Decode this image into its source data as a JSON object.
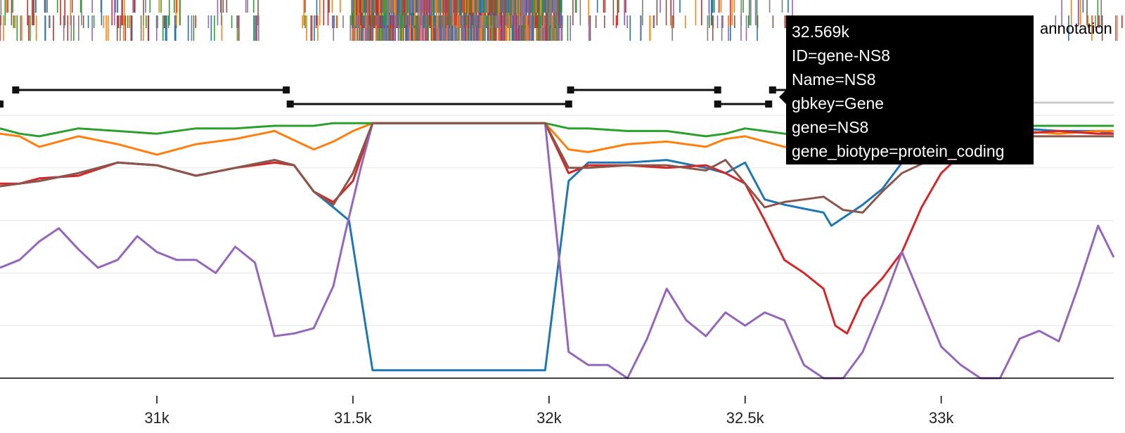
{
  "track_label": "annotation",
  "tooltip": {
    "lines": [
      "32.569k",
      "ID=gene-NS8",
      "Name=NS8",
      "gbkey=Gene",
      "gene=NS8",
      "gene_biotype=protein_coding"
    ]
  },
  "colors": {
    "blue": "#1f77b4",
    "orange": "#ff7f0e",
    "green": "#2ca02c",
    "red": "#d62728",
    "purple": "#9467bd",
    "brown": "#8c564b",
    "gray": "#7f7f7f",
    "gridline": "#e6e6e6"
  },
  "chart_data": {
    "type": "line",
    "xlabel": "",
    "ylabel": "",
    "x_ticks": [
      31000,
      31500,
      32000,
      32500,
      33000
    ],
    "x_tick_labels": [
      "31k",
      "31.5k",
      "32k",
      "32.5k",
      "33k"
    ],
    "xlim": [
      30600,
      33440
    ],
    "ylim": [
      0,
      1
    ],
    "grid": true,
    "gene_features": [
      {
        "start": 30500,
        "end": 30600
      },
      {
        "start": 30640,
        "end": 31330
      },
      {
        "start": 31340,
        "end": 32050
      },
      {
        "start": 32055,
        "end": 32430
      },
      {
        "start": 32430,
        "end": 32560
      },
      {
        "start": 32570,
        "end": 32700
      }
    ],
    "series": [
      {
        "color": "blue",
        "x": [
          30600,
          30650,
          30700,
          30800,
          30900,
          31000,
          31100,
          31200,
          31300,
          31350,
          31400,
          31450,
          31490,
          31550,
          31990,
          32050,
          32100,
          32200,
          32300,
          32400,
          32450,
          32500,
          32550,
          32600,
          32700,
          32720,
          32800,
          32850,
          32900,
          33000,
          33100,
          33200,
          33300,
          33400,
          33440
        ],
        "y": [
          0.73,
          0.74,
          0.75,
          0.78,
          0.82,
          0.81,
          0.77,
          0.8,
          0.83,
          0.81,
          0.71,
          0.65,
          0.6,
          0.03,
          0.03,
          0.75,
          0.82,
          0.82,
          0.83,
          0.8,
          0.78,
          0.82,
          0.68,
          0.66,
          0.63,
          0.58,
          0.66,
          0.72,
          0.82,
          0.9,
          0.94,
          0.95,
          0.94,
          0.94,
          0.93
        ]
      },
      {
        "color": "orange",
        "x": [
          30600,
          30650,
          30700,
          30800,
          30900,
          31000,
          31100,
          31200,
          31300,
          31400,
          31450,
          31500,
          31550,
          31990,
          32050,
          32100,
          32200,
          32300,
          32400,
          32450,
          32500,
          32550,
          32600,
          32700,
          32800,
          32900,
          33000,
          33100,
          33200,
          33300,
          33400,
          33440
        ],
        "y": [
          0.93,
          0.92,
          0.88,
          0.92,
          0.89,
          0.85,
          0.89,
          0.91,
          0.94,
          0.87,
          0.9,
          0.94,
          0.97,
          0.97,
          0.87,
          0.86,
          0.89,
          0.9,
          0.88,
          0.91,
          0.92,
          0.9,
          0.88,
          0.87,
          0.89,
          0.93,
          0.95,
          0.95,
          0.94,
          0.93,
          0.94,
          0.94
        ]
      },
      {
        "color": "green",
        "x": [
          30600,
          30650,
          30700,
          30800,
          30900,
          31000,
          31100,
          31200,
          31300,
          31400,
          31450,
          31500,
          31550,
          31990,
          32050,
          32100,
          32200,
          32300,
          32400,
          32450,
          32500,
          32550,
          32600,
          32700,
          32800,
          32900,
          33000,
          33100,
          33200,
          33300,
          33400,
          33440
        ],
        "y": [
          0.95,
          0.93,
          0.92,
          0.95,
          0.94,
          0.93,
          0.95,
          0.95,
          0.96,
          0.96,
          0.97,
          0.97,
          0.97,
          0.97,
          0.95,
          0.95,
          0.94,
          0.94,
          0.92,
          0.93,
          0.95,
          0.94,
          0.93,
          0.93,
          0.94,
          0.95,
          0.96,
          0.96,
          0.96,
          0.96,
          0.96,
          0.96
        ]
      },
      {
        "color": "red",
        "x": [
          30600,
          30650,
          30700,
          30800,
          30900,
          31000,
          31100,
          31200,
          31300,
          31350,
          31400,
          31450,
          31500,
          31550,
          31990,
          32050,
          32100,
          32200,
          32300,
          32400,
          32450,
          32500,
          32550,
          32600,
          32650,
          32700,
          32730,
          32760,
          32800,
          32850,
          32900,
          32950,
          33000,
          33050,
          33100,
          33200,
          33300,
          33400,
          33440
        ],
        "y": [
          0.74,
          0.74,
          0.76,
          0.77,
          0.82,
          0.81,
          0.77,
          0.8,
          0.82,
          0.81,
          0.71,
          0.67,
          0.75,
          0.97,
          0.97,
          0.78,
          0.81,
          0.81,
          0.8,
          0.81,
          0.78,
          0.74,
          0.6,
          0.45,
          0.4,
          0.34,
          0.2,
          0.17,
          0.3,
          0.38,
          0.48,
          0.65,
          0.78,
          0.85,
          0.9,
          0.93,
          0.94,
          0.93,
          0.93
        ]
      },
      {
        "color": "purple",
        "x": [
          30600,
          30650,
          30700,
          30750,
          30800,
          30850,
          30900,
          30950,
          31000,
          31050,
          31100,
          31150,
          31200,
          31250,
          31300,
          31350,
          31400,
          31450,
          31480,
          31520,
          31550,
          31990,
          32050,
          32100,
          32150,
          32200,
          32250,
          32300,
          32350,
          32400,
          32450,
          32500,
          32550,
          32600,
          32650,
          32700,
          32750,
          32800,
          32850,
          32900,
          32950,
          33000,
          33050,
          33100,
          33150,
          33200,
          33250,
          33300,
          33350,
          33400,
          33440
        ],
        "y": [
          0.42,
          0.45,
          0.52,
          0.57,
          0.49,
          0.42,
          0.45,
          0.54,
          0.48,
          0.45,
          0.45,
          0.4,
          0.5,
          0.44,
          0.16,
          0.17,
          0.19,
          0.35,
          0.55,
          0.8,
          0.97,
          0.97,
          0.1,
          0.05,
          0.05,
          0.0,
          0.15,
          0.34,
          0.22,
          0.16,
          0.25,
          0.2,
          0.25,
          0.22,
          0.05,
          0.0,
          0.0,
          0.1,
          0.28,
          0.48,
          0.3,
          0.12,
          0.05,
          0.0,
          0.0,
          0.15,
          0.18,
          0.14,
          0.35,
          0.58,
          0.46
        ]
      },
      {
        "color": "brown",
        "x": [
          30600,
          30650,
          30700,
          30800,
          30900,
          31000,
          31100,
          31200,
          31300,
          31350,
          31400,
          31450,
          31500,
          31550,
          31990,
          32050,
          32100,
          32200,
          32300,
          32400,
          32450,
          32500,
          32550,
          32600,
          32650,
          32700,
          32750,
          32800,
          32850,
          32900,
          33000,
          33100,
          33200,
          33300,
          33400,
          33440
        ],
        "y": [
          0.73,
          0.74,
          0.75,
          0.78,
          0.82,
          0.81,
          0.77,
          0.8,
          0.83,
          0.81,
          0.71,
          0.66,
          0.78,
          0.97,
          0.97,
          0.8,
          0.8,
          0.81,
          0.81,
          0.79,
          0.83,
          0.74,
          0.65,
          0.67,
          0.68,
          0.69,
          0.64,
          0.63,
          0.71,
          0.78,
          0.85,
          0.9,
          0.92,
          0.92,
          0.92,
          0.92
        ]
      }
    ]
  }
}
